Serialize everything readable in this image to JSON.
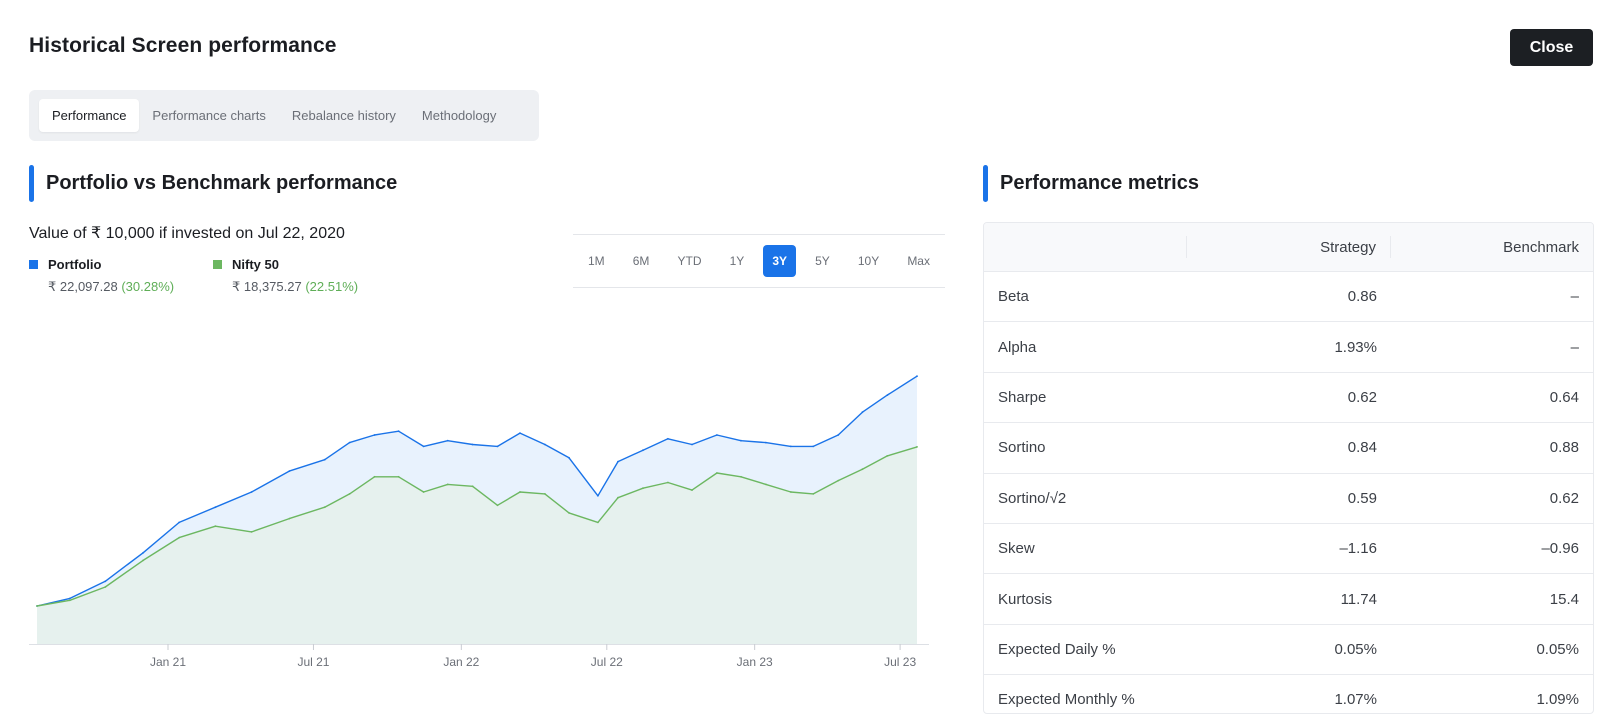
{
  "header": {
    "title": "Historical Screen performance",
    "close_label": "Close"
  },
  "tabs": [
    {
      "label": "Performance",
      "active": true
    },
    {
      "label": "Performance charts",
      "active": false
    },
    {
      "label": "Rebalance history",
      "active": false
    },
    {
      "label": "Methodology",
      "active": false
    }
  ],
  "left_section": {
    "title": "Portfolio vs Benchmark performance",
    "value_line": "Value of ₹ 10,000 if invested on Jul 22, 2020",
    "legend": [
      {
        "name": "Portfolio",
        "color": "#1a73e8",
        "value": "₹ 22,097.28",
        "change": "(30.28%)"
      },
      {
        "name": "Nifty 50",
        "color": "#6cb761",
        "value": "₹ 18,375.27",
        "change": "(22.51%)"
      }
    ],
    "ranges": [
      "1M",
      "6M",
      "YTD",
      "1Y",
      "3Y",
      "5Y",
      "10Y",
      "Max"
    ],
    "active_range": "3Y"
  },
  "chart_data": {
    "type": "area",
    "title": "",
    "xlabel": "",
    "ylabel": "",
    "x_ticks": [
      "Jan 21",
      "Jul 21",
      "Jan 22",
      "Jul 22",
      "Jan 23",
      "Jul 23"
    ],
    "x": [
      "2020-07-22",
      "2020-09-01",
      "2020-10-15",
      "2020-12-01",
      "2021-01-15",
      "2021-03-01",
      "2021-04-15",
      "2021-06-01",
      "2021-07-15",
      "2021-08-15",
      "2021-09-15",
      "2021-10-15",
      "2021-11-15",
      "2021-12-15",
      "2022-01-15",
      "2022-02-15",
      "2022-03-15",
      "2022-04-15",
      "2022-05-15",
      "2022-06-20",
      "2022-07-15",
      "2022-08-15",
      "2022-09-15",
      "2022-10-15",
      "2022-11-15",
      "2022-12-15",
      "2023-01-15",
      "2023-02-15",
      "2023-03-15",
      "2023-04-15",
      "2023-05-15",
      "2023-06-15",
      "2023-07-22"
    ],
    "series": [
      {
        "name": "Portfolio",
        "color": "#1a73e8",
        "values": [
          10000,
          10400,
          11300,
          12800,
          14400,
          15200,
          16000,
          17100,
          17700,
          18600,
          19000,
          19200,
          18400,
          18700,
          18500,
          18400,
          19100,
          18500,
          17800,
          15800,
          17600,
          18200,
          18800,
          18500,
          19000,
          18700,
          18600,
          18400,
          18400,
          19000,
          20200,
          21100,
          22097.28
        ]
      },
      {
        "name": "Nifty 50",
        "color": "#6cb761",
        "values": [
          10000,
          10300,
          11000,
          12400,
          13600,
          14200,
          13900,
          14600,
          15200,
          15900,
          16800,
          16800,
          16000,
          16400,
          16300,
          15300,
          16000,
          15900,
          14900,
          14400,
          15700,
          16200,
          16500,
          16100,
          17000,
          16800,
          16400,
          16000,
          15900,
          16600,
          17200,
          17900,
          18375.27
        ]
      }
    ],
    "ylim": [
      8000,
      24000
    ]
  },
  "metrics": {
    "title": "Performance metrics",
    "columns": [
      "",
      "Strategy",
      "Benchmark"
    ],
    "rows": [
      {
        "label": "Beta",
        "strategy": "0.86",
        "benchmark": "–"
      },
      {
        "label": "Alpha",
        "strategy": "1.93%",
        "benchmark": "–"
      },
      {
        "label": "Sharpe",
        "strategy": "0.62",
        "benchmark": "0.64"
      },
      {
        "label": "Sortino",
        "strategy": "0.84",
        "benchmark": "0.88"
      },
      {
        "label": "Sortino/√2",
        "strategy": "0.59",
        "benchmark": "0.62"
      },
      {
        "label": "Skew",
        "strategy": "–1.16",
        "benchmark": "–0.96"
      },
      {
        "label": "Kurtosis",
        "strategy": "11.74",
        "benchmark": "15.4"
      },
      {
        "label": "Expected Daily %",
        "strategy": "0.05%",
        "benchmark": "0.05%"
      },
      {
        "label": "Expected Monthly %",
        "strategy": "1.07%",
        "benchmark": "1.09%"
      }
    ]
  }
}
